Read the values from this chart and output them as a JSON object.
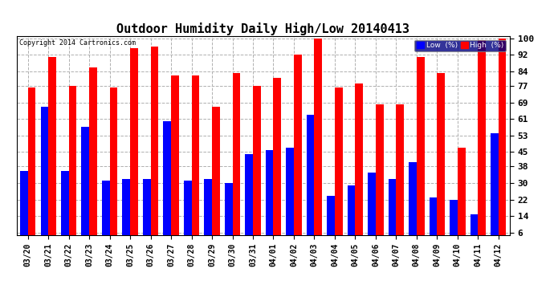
{
  "title": "Outdoor Humidity Daily High/Low 20140413",
  "copyright": "Copyright 2014 Cartronics.com",
  "dates": [
    "03/20",
    "03/21",
    "03/22",
    "03/23",
    "03/24",
    "03/25",
    "03/26",
    "03/27",
    "03/28",
    "03/29",
    "03/30",
    "03/31",
    "04/01",
    "04/02",
    "04/03",
    "04/04",
    "04/05",
    "04/06",
    "04/07",
    "04/08",
    "04/09",
    "04/10",
    "04/11",
    "04/12"
  ],
  "low_values": [
    36,
    67,
    36,
    57,
    31,
    32,
    32,
    60,
    31,
    32,
    30,
    44,
    46,
    47,
    63,
    24,
    29,
    35,
    32,
    40,
    23,
    22,
    15,
    54
  ],
  "high_values": [
    76,
    91,
    77,
    86,
    76,
    95,
    96,
    82,
    82,
    67,
    83,
    77,
    81,
    92,
    100,
    76,
    78,
    68,
    68,
    91,
    83,
    47,
    99,
    100
  ],
  "low_color": "#0000ff",
  "high_color": "#ff0000",
  "bg_color": "#ffffff",
  "grid_color": "#b0b0b0",
  "yticks": [
    6,
    14,
    22,
    30,
    38,
    45,
    53,
    61,
    69,
    77,
    84,
    92,
    100
  ],
  "ymin": 6,
  "ymax": 100,
  "title_fontsize": 11,
  "legend_label_low": "Low  (%)",
  "legend_label_high": "High  (%)",
  "bar_width": 0.38
}
